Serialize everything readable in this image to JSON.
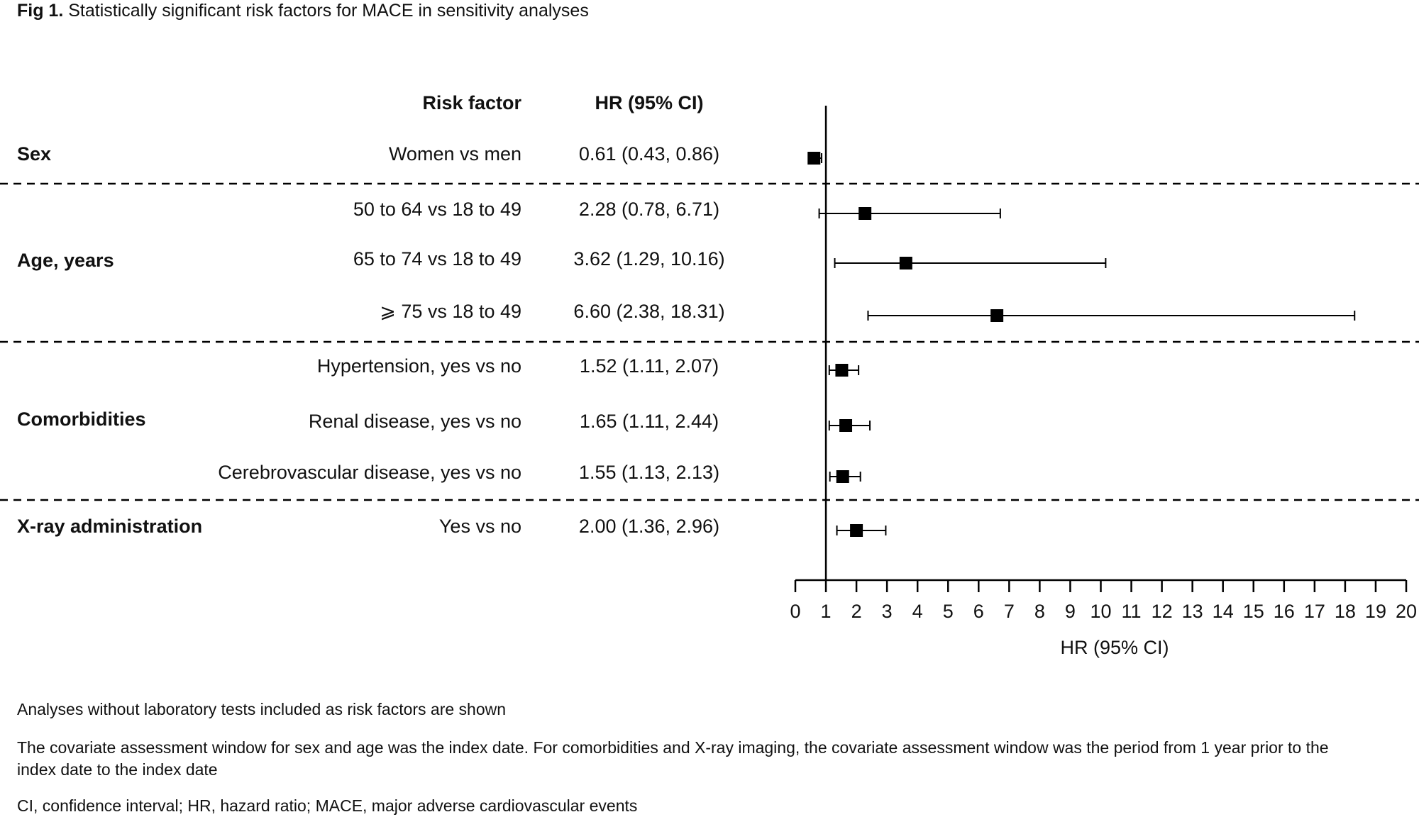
{
  "chart_data": {
    "type": "forest",
    "title_label": "Fig 1.",
    "title": "Statistically significant risk factors for MACE in sensitivity analyses",
    "column_headers": [
      "Risk factor",
      "HR (95% CI)"
    ],
    "groups": [
      {
        "name": "Sex",
        "categories": [
          "Women vs men"
        ],
        "values": [
          0.61
        ],
        "lower": [
          0.43
        ],
        "upper": [
          0.86
        ],
        "value_labels": [
          "0.61 (0.43, 0.86)"
        ]
      },
      {
        "name": "Age, years",
        "categories": [
          "50 to 64 vs 18 to 49",
          "65 to 74 vs 18 to 49",
          "⩾ 75 vs 18 to 49"
        ],
        "values": [
          2.28,
          3.62,
          6.6
        ],
        "lower": [
          0.78,
          1.29,
          2.38
        ],
        "upper": [
          6.71,
          10.16,
          18.31
        ],
        "value_labels": [
          "2.28 (0.78, 6.71)",
          "3.62 (1.29, 10.16)",
          "6.60 (2.38, 18.31)"
        ]
      },
      {
        "name": "Comorbidities",
        "categories": [
          "Hypertension, yes vs no",
          "Renal disease, yes vs no",
          "Cerebrovascular disease, yes vs no"
        ],
        "values": [
          1.52,
          1.65,
          1.55
        ],
        "lower": [
          1.11,
          1.11,
          1.13
        ],
        "upper": [
          2.07,
          2.44,
          2.13
        ],
        "value_labels": [
          "1.52 (1.11, 2.07)",
          "1.65 (1.11, 2.44)",
          "1.55 (1.13, 2.13)"
        ]
      },
      {
        "name": "X-ray administration",
        "categories": [
          "Yes vs no"
        ],
        "values": [
          2.0
        ],
        "lower": [
          1.36
        ],
        "upper": [
          2.96
        ],
        "value_labels": [
          "2.00 (1.36, 2.96)"
        ]
      }
    ],
    "reference_line": 1,
    "xlabel": "HR (95% CI)",
    "xlim": [
      0,
      20
    ],
    "xticks": [
      0,
      1,
      2,
      3,
      4,
      5,
      6,
      7,
      8,
      9,
      10,
      11,
      12,
      13,
      14,
      15,
      16,
      17,
      18,
      19,
      20
    ],
    "color": "#000000",
    "footnotes": [
      "Analyses without laboratory tests included as risk factors are shown",
      "The covariate assessment window for sex and age was the index date. For comorbidities and X-ray imaging, the covariate assessment window was the period from 1 year prior to the index date to the index date",
      "CI, confidence interval; HR, hazard ratio; MACE, major adverse cardiovascular events"
    ]
  }
}
